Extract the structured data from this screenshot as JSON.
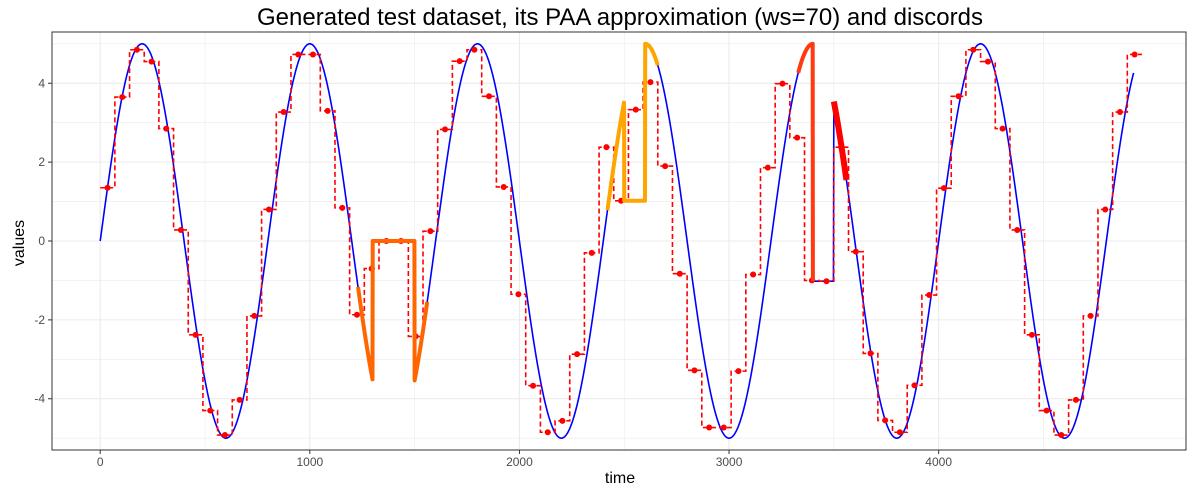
{
  "chart_data": {
    "type": "line",
    "title": "Generated test dataset, its PAA approximation (ws=70) and discords",
    "xlabel": "time",
    "ylabel": "values",
    "xlim": [
      -230,
      5180
    ],
    "ylim": [
      -5.3,
      5.3
    ],
    "x_ticks": [
      0,
      1000,
      2000,
      3000,
      4000
    ],
    "x_tick_labels": [
      "0",
      "1000",
      "2000",
      "3000",
      "4000"
    ],
    "y_ticks": [
      -4,
      -2,
      0,
      2,
      4
    ],
    "y_tick_labels": [
      "-4",
      "-2",
      "0",
      "2",
      "4"
    ],
    "grid": true,
    "legend": "none",
    "signal": {
      "name": "",
      "color": "#0000ff",
      "description_fn": "5*sin(2*pi*t/800)",
      "amplitude": 5,
      "period": 800,
      "x_range": [
        0,
        4930
      ],
      "replaced_segments": [
        {
          "x_range": [
            1300,
            1500
          ],
          "value": 0
        },
        {
          "x_range": [
            2500,
            2600
          ],
          "value": 1.02
        },
        {
          "x_range": [
            3400,
            3500
          ],
          "value": -1.02
        }
      ]
    },
    "paa": {
      "name": "",
      "color": "#ff0000",
      "window": 70,
      "x": [
        35,
        105,
        175,
        245,
        315,
        385,
        455,
        525,
        595,
        665,
        735,
        805,
        875,
        945,
        1015,
        1085,
        1155,
        1225,
        1295,
        1365,
        1435,
        1505,
        1575,
        1645,
        1715,
        1785,
        1855,
        1925,
        1995,
        2065,
        2135,
        2205,
        2275,
        2345,
        2415,
        2485,
        2555,
        2625,
        2695,
        2765,
        2835,
        2905,
        2975,
        3045,
        3115,
        3185,
        3255,
        3325,
        3395,
        3465,
        3535,
        3605,
        3675,
        3745,
        3815,
        3885,
        3955,
        4025,
        4095,
        4165,
        4235,
        4305,
        4375,
        4445,
        4515,
        4585,
        4655,
        4725,
        4795,
        4865,
        4935
      ],
      "values": [
        1.35,
        3.65,
        4.85,
        4.55,
        2.85,
        0.28,
        -2.38,
        -4.3,
        -4.92,
        -4.03,
        -1.9,
        0.8,
        3.27,
        4.73,
        4.73,
        3.3,
        0.84,
        -1.87,
        -0.7,
        0.0,
        0.0,
        -2.42,
        0.25,
        2.83,
        4.56,
        4.85,
        3.67,
        1.37,
        -1.35,
        -3.67,
        -4.85,
        -4.56,
        -2.87,
        -0.3,
        2.38,
        1.02,
        3.33,
        4.03,
        1.9,
        -0.83,
        -3.28,
        -4.73,
        -4.73,
        -3.3,
        -0.85,
        1.86,
        3.99,
        2.62,
        -1.0,
        -1.02,
        2.38,
        -0.27,
        -2.85,
        -4.55,
        -4.85,
        -3.66,
        -1.37,
        1.34,
        3.67,
        4.85,
        4.55,
        2.85,
        0.28,
        -2.38,
        -4.3,
        -4.92,
        -4.03,
        -1.9,
        0.8,
        3.27,
        4.73
      ]
    },
    "discords": [
      {
        "color": "#ff6600",
        "stroke": 4,
        "x_range": [
          1230,
          1560
        ]
      },
      {
        "color": "#ffa500",
        "stroke": 4,
        "x_range": [
          2420,
          2660
        ]
      },
      {
        "color": "#ff3a10",
        "stroke": 4,
        "x_range": [
          3330,
          3400
        ]
      },
      {
        "color": "#ff0000",
        "stroke": 6,
        "x_range": [
          3500,
          3560
        ]
      }
    ],
    "colors": {
      "panel_background": "#ffffff",
      "panel_border": "#333333",
      "grid": "#ebebeb",
      "signal": "#0000ff",
      "paa": "#ff0000"
    }
  }
}
